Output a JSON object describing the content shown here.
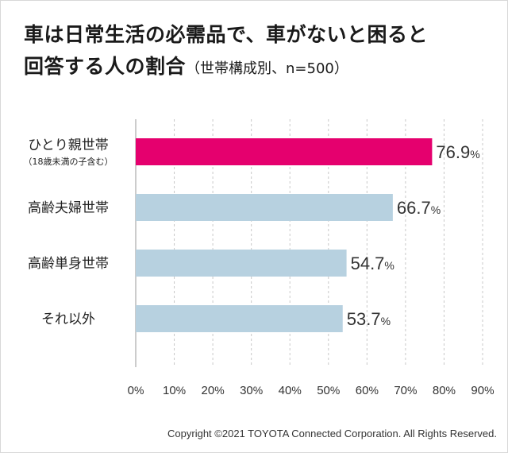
{
  "title_line1": "車は日常生活の必需品で、車がないと困ると",
  "title_line2": "回答する人の割合",
  "title_sub": "（世帯構成別、n=500）",
  "copyright": "Copyright ©2021 TOYOTA Connected Corporation. All Rights Reserved.",
  "chart_data": {
    "type": "bar",
    "orientation": "horizontal",
    "title": "車は日常生活の必需品で、車がないと困ると回答する人の割合（世帯構成別、n=500）",
    "categories": [
      "ひとり親世帯",
      "高齢夫婦世帯",
      "高齢単身世帯",
      "それ以外"
    ],
    "category_notes": [
      "（18歳未満の子含む）",
      "",
      "",
      ""
    ],
    "values": [
      76.9,
      66.7,
      54.7,
      53.7
    ],
    "value_suffix": "%",
    "colors": [
      "#e5006e",
      "#b7d1e0",
      "#b7d1e0",
      "#b7d1e0"
    ],
    "xlim": [
      0,
      90
    ],
    "xticks": [
      0,
      10,
      20,
      30,
      40,
      50,
      60,
      70,
      80,
      90
    ],
    "tick_suffix": "%",
    "grid": true,
    "grid_color": "#c8c8c8"
  }
}
